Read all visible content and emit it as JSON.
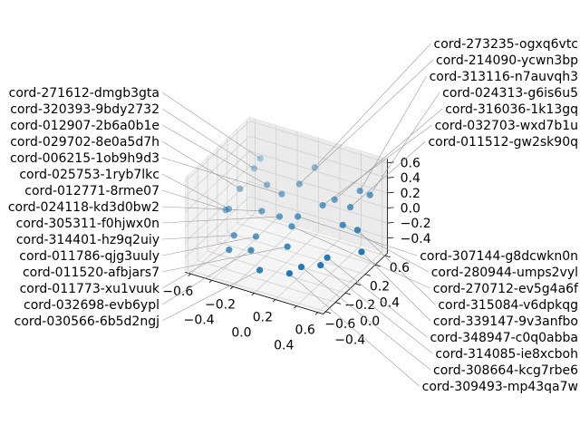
{
  "chart_data": {
    "type": "scatter",
    "projection": "3d",
    "title": "",
    "xlabel": "",
    "ylabel": "",
    "zlabel": "",
    "xlim": [
      -0.65,
      0.65
    ],
    "ylim": [
      -0.65,
      0.65
    ],
    "zlim": [
      -0.6,
      0.65
    ],
    "x_ticks": [
      "−0.6",
      "−0.4",
      "−0.2",
      "0.0",
      "0.2",
      "0.4",
      "0.6"
    ],
    "y_ticks": [
      "−0.6",
      "−0.4",
      "−0.2",
      "0.0",
      "0.2",
      "0.4",
      "0.6"
    ],
    "z_ticks": [
      "−0.4",
      "−0.2",
      "0.0",
      "0.2",
      "0.4",
      "0.6"
    ],
    "x_tick_values": [
      -0.6,
      -0.4,
      -0.2,
      0.0,
      0.2,
      0.4,
      0.6
    ],
    "y_tick_values": [
      -0.6,
      -0.4,
      -0.2,
      0.0,
      0.2,
      0.4,
      0.6
    ],
    "z_tick_values": [
      -0.4,
      -0.2,
      0.0,
      0.2,
      0.4,
      0.6
    ],
    "grid": true,
    "marker_color": "#1f77b4",
    "pane_color": "#f2f2f2",
    "points": [
      {
        "label": "cord-271612-dmgb3gta",
        "x": -0.33,
        "y": 0.18,
        "z": 0.53
      },
      {
        "label": "cord-320393-9bdy2732",
        "x": -0.35,
        "y": 0.1,
        "z": 0.44
      },
      {
        "label": "cord-273235-ogxq6vtc",
        "x": 0.08,
        "y": 0.4,
        "z": 0.45
      },
      {
        "label": "cord-012907-2b6a0b1e",
        "x": -0.22,
        "y": 0.08,
        "z": 0.29
      },
      {
        "label": "cord-029702-8e0a5d7h",
        "x": -0.4,
        "y": -0.08,
        "z": 0.26
      },
      {
        "label": "cord-006215-1ob9h9d3",
        "x": -0.09,
        "y": 0.1,
        "z": 0.21
      },
      {
        "label": "cord-214090-ycwn3bp",
        "x": 0.01,
        "y": 0.24,
        "z": 0.3
      },
      {
        "label": "cord-313116-n7auvqh3",
        "x": 0.46,
        "y": 0.5,
        "z": 0.24
      },
      {
        "label": "cord-316036-1k13gq",
        "x": 0.3,
        "y": 0.33,
        "z": 0.16
      },
      {
        "label": "cord-024313-g6is6u5",
        "x": 0.54,
        "y": 0.53,
        "z": 0.2
      },
      {
        "label": "cord-032703-wxd7b1u",
        "x": 0.23,
        "y": 0.24,
        "z": 0.11
      },
      {
        "label": "cord-011512-gw2sk90q",
        "x": 0.43,
        "y": 0.37,
        "z": 0.09
      },
      {
        "label": "cord-012771-8rme07",
        "x": -0.45,
        "y": -0.26,
        "z": 0.07
      },
      {
        "label": "cord-025753-1ryb7lkc",
        "x": -0.43,
        "y": -0.24,
        "z": 0.08
      },
      {
        "label": "cord-024118-kd3d0bw2",
        "x": -0.19,
        "y": -0.09,
        "z": 0.06
      },
      {
        "label": "cord-305311-f0hjwx0n",
        "x": -0.05,
        "y": -0.03,
        "z": 0.01
      },
      {
        "label": "cord-307144-g8dcwkn0n",
        "x": 0.08,
        "y": 0.06,
        "z": 0.01
      },
      {
        "label": "cord-270712-ev5g4a6f",
        "x": 0.06,
        "y": -0.02,
        "z": -0.08
      },
      {
        "label": "cord-280944-umps2vyl",
        "x": 0.42,
        "y": 0.24,
        "z": -0.07
      },
      {
        "label": "cord-315084-v6dpkqg",
        "x": 0.54,
        "y": 0.28,
        "z": -0.11
      },
      {
        "label": "cord-314401-hz9q2uiy",
        "x": -0.33,
        "y": -0.35,
        "z": -0.16
      },
      {
        "label": "cord-011786-qjg3uuly",
        "x": -0.17,
        "y": -0.25,
        "z": -0.17
      },
      {
        "label": "cord-011773-xu1vuuk",
        "x": -0.33,
        "y": -0.45,
        "z": -0.29
      },
      {
        "label": "cord-032698-evb6ypl",
        "x": -0.17,
        "y": -0.35,
        "z": -0.29
      },
      {
        "label": "cord-011520-afbjars7",
        "x": 0.08,
        "y": -0.15,
        "z": -0.26
      },
      {
        "label": "cord-339147-9v3anfbo",
        "x": 0.62,
        "y": 0.19,
        "z": -0.31
      },
      {
        "label": "cord-348947-c0q0abba",
        "x": 0.39,
        "y": -0.01,
        "z": -0.36
      },
      {
        "label": "cord-314085-ie8xcboh",
        "x": 0.36,
        "y": -0.08,
        "z": -0.43
      },
      {
        "label": "cord-308664-kcg7rbe6",
        "x": 0.23,
        "y": -0.19,
        "z": -0.44
      },
      {
        "label": "cord-030566-6b5d2ngj",
        "x": -0.06,
        "y": -0.41,
        "z": -0.47
      },
      {
        "label": "cord-309493-mp43qa7w",
        "x": 0.16,
        "y": -0.28,
        "z": -0.5
      }
    ]
  }
}
